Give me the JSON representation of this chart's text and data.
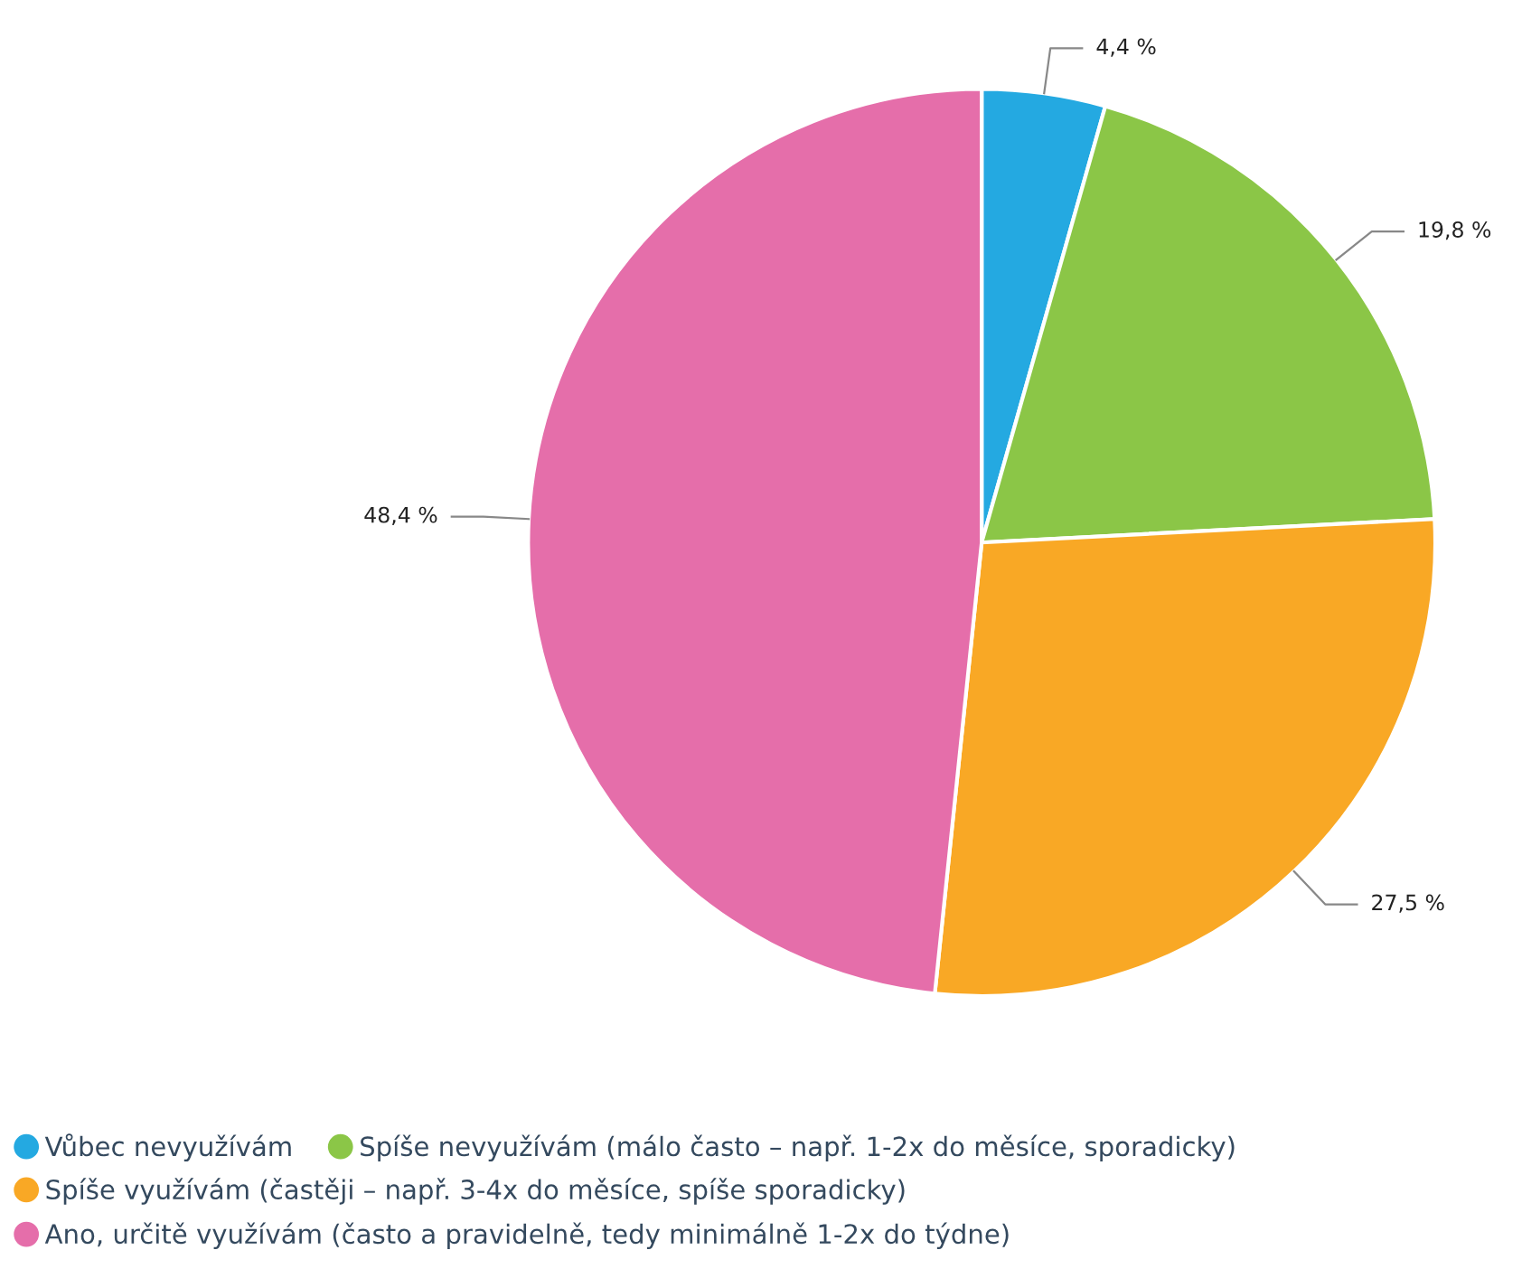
{
  "chart_data": {
    "type": "pie",
    "categories": [
      "Vůbec nevyužívám",
      "Spíše nevyužívám (málo často – např. 1-2x do měsíce, sporadicky)",
      "Spíše využívám (častěji – např. 3-4x do měsíce, spíše sporadicky)",
      "Ano, určitě využívám (často a pravidelně, tedy minimálně 1-2x do týdne)"
    ],
    "values": [
      4.4,
      19.8,
      27.5,
      48.4
    ],
    "colors": [
      "#24a9e1",
      "#8bc647",
      "#f9a825",
      "#e56eaa"
    ],
    "value_labels": [
      "4,4 %",
      "19,8 %",
      "27,5 %",
      "48,4 %"
    ],
    "legend": "bottom"
  }
}
